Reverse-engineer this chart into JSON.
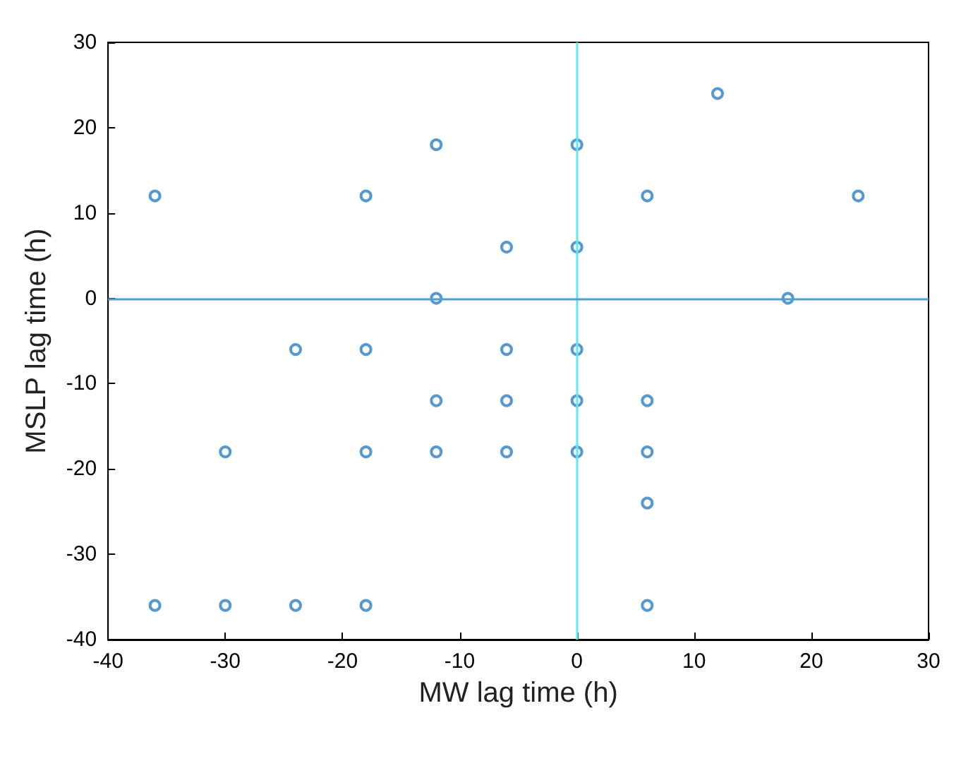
{
  "chart_data": {
    "type": "scatter",
    "xlabel": "MW lag time (h)",
    "ylabel": "MSLP lag time (h)",
    "xlim": [
      -40,
      30
    ],
    "xticks": [
      -40,
      -30,
      -20,
      -10,
      0,
      10,
      20,
      30
    ],
    "ylim": [
      -40,
      30
    ],
    "yticks": [
      -40,
      -30,
      -20,
      -10,
      0,
      10,
      20,
      30
    ],
    "grid": false,
    "marker": "circle",
    "ref_lines": [
      {
        "axis": "x",
        "value": 0,
        "color": "#5fe8f0"
      },
      {
        "axis": "y",
        "value": 0,
        "color": "#4f9fd0"
      }
    ],
    "series": [
      {
        "color": "#2b7fc4",
        "x": [
          -36,
          -36,
          -30,
          -30,
          -24,
          -24,
          -18,
          -18,
          -18,
          -18,
          -12,
          -12,
          -12,
          -12,
          -6,
          -6,
          -6,
          -6,
          0,
          0,
          0,
          0,
          0,
          6,
          6,
          6,
          6,
          6,
          12,
          18,
          24
        ],
        "values": [
          12,
          -36,
          -18,
          -36,
          -6,
          -36,
          12,
          -6,
          -18,
          -36,
          18,
          0,
          -12,
          -18,
          6,
          -6,
          -12,
          -18,
          18,
          6,
          -6,
          -12,
          -18,
          12,
          -12,
          -18,
          -24,
          -36,
          24,
          0,
          12
        ]
      }
    ]
  }
}
